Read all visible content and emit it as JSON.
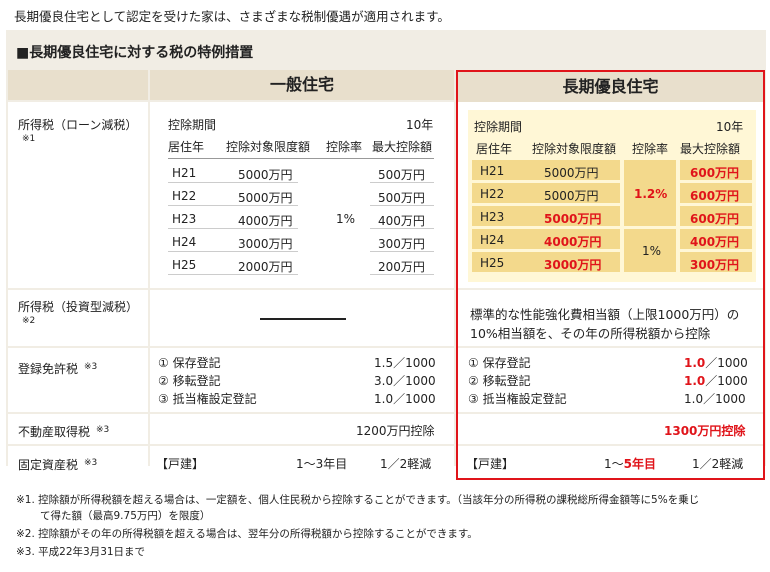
{
  "intro": "長期優良住宅として認定を受けた家は、さまざまな税制優遇が適用されます。",
  "title": "■長期優良住宅に対する税の特例措置",
  "general_header": "一般住宅",
  "long_header": "長期優良住宅",
  "income_loan": {
    "label": "所得税（ローン減税）",
    "note": "※1",
    "period_label": "控除期間",
    "period_value": "10年",
    "col_year": "居住年",
    "col_limit": "控除対象限度額",
    "col_rate": "控除率",
    "col_max": "最大控除額",
    "general_rows": [
      {
        "year": "H21",
        "limit": "5000万円",
        "max": "500万円"
      },
      {
        "year": "H22",
        "limit": "5000万円",
        "max": "500万円"
      },
      {
        "year": "H23",
        "limit": "4000万円",
        "max": "400万円"
      },
      {
        "year": "H24",
        "limit": "3000万円",
        "max": "300万円"
      },
      {
        "year": "H25",
        "limit": "2000万円",
        "max": "200万円"
      }
    ],
    "general_rate": "1%",
    "long_rows": [
      {
        "year": "H21",
        "limit": "5000万円",
        "max": "600万円"
      },
      {
        "year": "H22",
        "limit": "5000万円",
        "max": "600万円"
      },
      {
        "year": "H23",
        "limit": "5000万円",
        "max": "600万円"
      },
      {
        "year": "H24",
        "limit": "4000万円",
        "max": "400万円"
      },
      {
        "year": "H25",
        "limit": "3000万円",
        "max": "300万円"
      }
    ],
    "long_rate_1": "1.2%",
    "long_rate_2": "1%"
  },
  "income_invest": {
    "label": "所得税（投資型減税）",
    "note": "※2",
    "long_text_1": "標準的な性能強化費相当額（上限1000万円）の",
    "long_text_2": "10%相当額を、その年の所得税額から控除"
  },
  "registration": {
    "label": "登録免許税",
    "note": "※3",
    "items": [
      "① 保存登記",
      "② 移転登記",
      "③ 抵当権設定登記"
    ],
    "general_values": [
      "1.5／1000",
      "3.0／1000",
      "1.0／1000"
    ],
    "long_values_num": [
      "1.0",
      "1.0",
      "1.0"
    ],
    "long_values_den": [
      "／1000",
      "／1000",
      "／1000"
    ]
  },
  "acquisition": {
    "label": "不動産取得税",
    "note": "※3",
    "general": "1200万円控除",
    "long": "1300万円控除"
  },
  "property": {
    "label": "固定資産税",
    "note": "※3",
    "kind": "【戸建】",
    "general_years": "1～3年目",
    "long_years_prefix": "1～",
    "long_years_red": "5年目",
    "reduction": "1／2軽減"
  },
  "footnotes": [
    "※1. 控除額が所得税額を超える場合は、一定額を、個人住民税から控除することができます。（当該年分の所得税の課税総所得金額等に5%を乗じ",
    "て得た額（最高9.75万円）を限度）",
    "※2. 控除額がその年の所得税額を超える場合は、翌年分の所得税額から控除することができます。",
    "※3. 平成22年3月31日まで"
  ],
  "colors": {
    "accent_red": "#e0141a",
    "header_bg": "#e8dfcc",
    "panel_bg": "#f1ede4",
    "highlight_yellow": "#fff7d6"
  }
}
